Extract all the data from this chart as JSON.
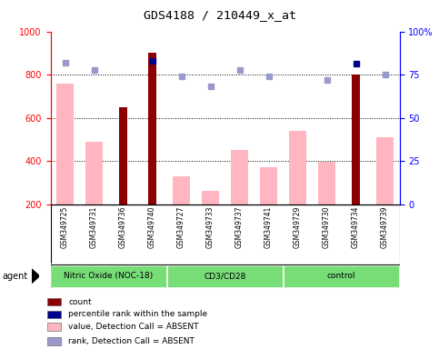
{
  "title": "GDS4188 / 210449_x_at",
  "samples": [
    "GSM349725",
    "GSM349731",
    "GSM349736",
    "GSM349740",
    "GSM349727",
    "GSM349733",
    "GSM349737",
    "GSM349741",
    "GSM349729",
    "GSM349730",
    "GSM349734",
    "GSM349739"
  ],
  "groups": [
    {
      "label": "Nitric Oxide (NOC-18)",
      "start": 0,
      "end": 4,
      "color": "#77DD77"
    },
    {
      "label": "CD3/CD28",
      "start": 4,
      "end": 8,
      "color": "#77DD77"
    },
    {
      "label": "control",
      "start": 8,
      "end": 12,
      "color": "#77DD77"
    }
  ],
  "bar_values": [
    null,
    null,
    650,
    900,
    null,
    null,
    null,
    null,
    null,
    null,
    800,
    null
  ],
  "bar_color": "#8B0000",
  "absent_values": [
    760,
    490,
    null,
    null,
    330,
    260,
    450,
    370,
    540,
    395,
    null,
    510
  ],
  "absent_color": "#FFB6C1",
  "rank_values": [
    855,
    820,
    null,
    862,
    790,
    745,
    820,
    790,
    null,
    775,
    850,
    800
  ],
  "rank_present": [
    false,
    false,
    true,
    true,
    false,
    false,
    false,
    false,
    false,
    false,
    true,
    false
  ],
  "rank_dot_color_present": "#00008B",
  "rank_dot_color_absent": "#9999CC",
  "ylim_left": [
    200,
    1000
  ],
  "ylim_right": [
    0,
    100
  ],
  "dotted_lines": [
    400,
    600,
    800
  ],
  "right_ticks": [
    0,
    25,
    50,
    75,
    100
  ],
  "figsize": [
    4.83,
    3.84
  ],
  "dpi": 100,
  "bg_plot": "#ffffff",
  "bg_sample_row": "#C8C8C8",
  "count_square_color": "#8B0000",
  "percentile_square_color": "#00008B",
  "absent_val_square_color": "#FFB6C1",
  "absent_rank_square_color": "#9999CC"
}
